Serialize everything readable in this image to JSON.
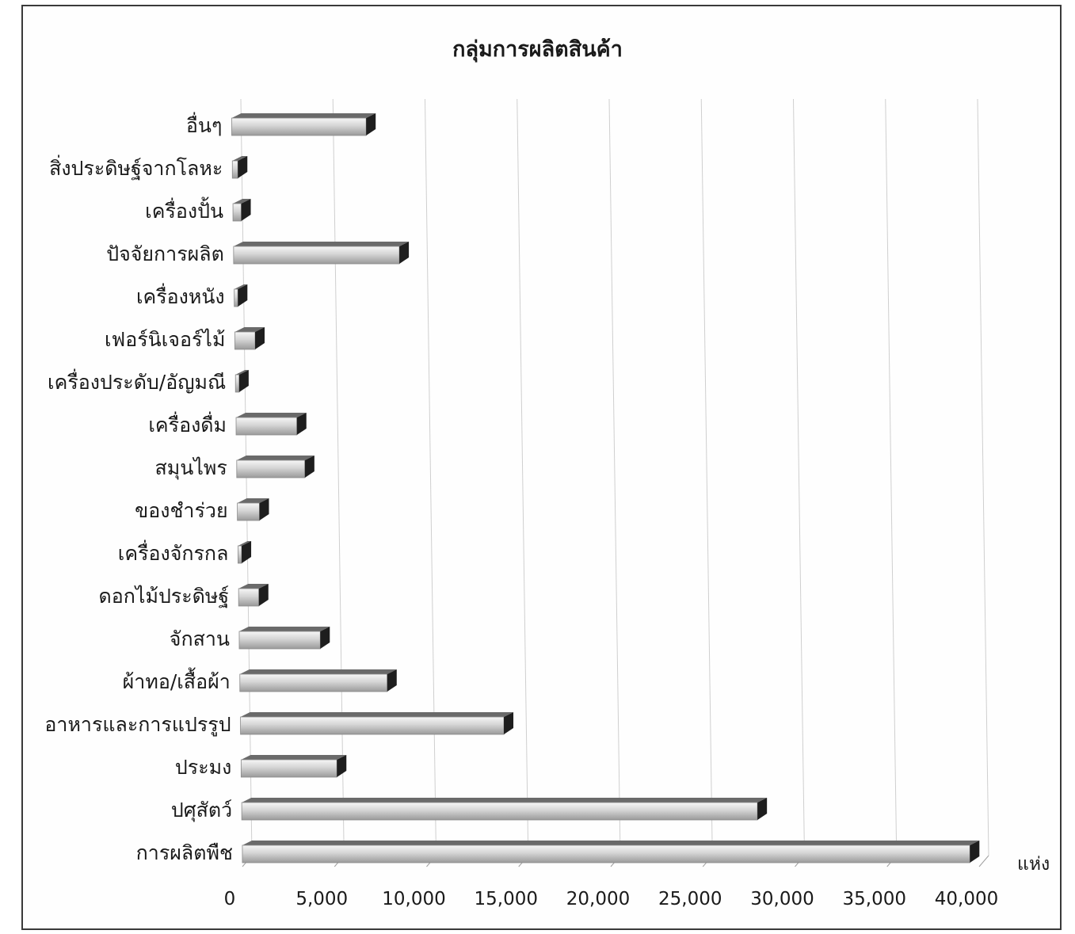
{
  "chart_data": {
    "type": "bar",
    "orientation": "horizontal",
    "title": "กลุ่มการผลิตสินค้า",
    "unit": "แห่ง",
    "xlim": [
      0,
      40000
    ],
    "xticks": [
      "0",
      "5,000",
      "10,000",
      "15,000",
      "20,000",
      "25,000",
      "30,000",
      "35,000",
      "40,000"
    ],
    "grid": true,
    "categories": [
      "อื่นๆ",
      "สิ่งประดิษฐ์จากโลหะ",
      "เครื่องปั้น",
      "ปัจจัยการผลิต",
      "เครื่องหนัง",
      "เฟอร์นิเจอร์ไม้",
      "เครื่องประดับ/อัญมณี",
      "เครื่องดื่ม",
      "สมุนไพร",
      "ของชำร่วย",
      "เครื่องจักรกล",
      "ดอกไม้ประดิษฐ์",
      "จักสาน",
      "ผ้าทอ/เสื้อผ้า",
      "อาหารและการแปรรูป",
      "ประมง",
      "ปศุสัตว์",
      "การผลิตพืช"
    ],
    "values": [
      7300,
      300,
      450,
      9000,
      200,
      1100,
      200,
      3300,
      3700,
      1200,
      200,
      1100,
      4400,
      8000,
      14300,
      5200,
      28000,
      39500
    ]
  }
}
